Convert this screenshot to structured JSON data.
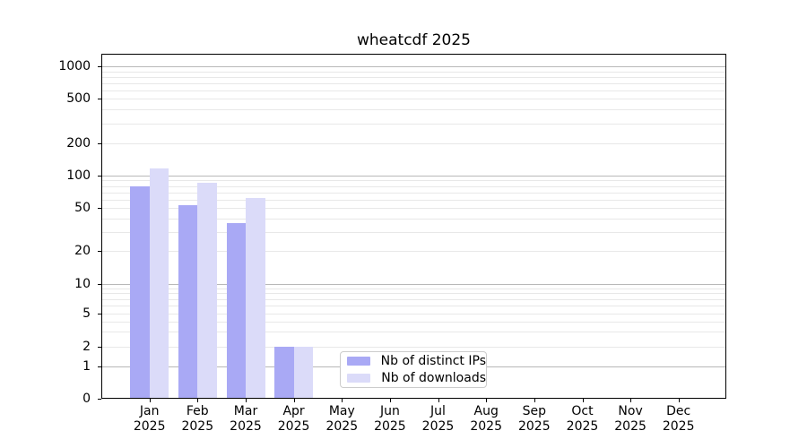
{
  "title": "wheatcdf 2025",
  "chart_data": {
    "type": "bar",
    "title": "wheatcdf 2025",
    "categories": [
      "Jan",
      "Feb",
      "Mar",
      "Apr",
      "May",
      "Jun",
      "Jul",
      "Aug",
      "Sep",
      "Oct",
      "Nov",
      "Dec"
    ],
    "category_year": "2025",
    "series": [
      {
        "name": "Nb of distinct IPs",
        "color": "#a9a9f5",
        "values": [
          80,
          53,
          36,
          2,
          0,
          0,
          0,
          0,
          0,
          0,
          0,
          0
        ]
      },
      {
        "name": "Nb of downloads",
        "color": "#dbdbf9",
        "values": [
          117,
          86,
          62,
          2,
          0,
          0,
          0,
          0,
          0,
          0,
          0,
          0
        ]
      }
    ],
    "ytick_labels": [
      "0",
      "1",
      "2",
      "5",
      "10",
      "20",
      "50",
      "100",
      "200",
      "500",
      "1000"
    ],
    "yticks": [
      0,
      1,
      2,
      5,
      10,
      20,
      50,
      100,
      200,
      500,
      1000
    ],
    "xlabel": "",
    "ylabel": "",
    "ylim": [
      0,
      1300
    ],
    "scale": "log-like with 1-2-5 ticks, linear below 1",
    "grid": "horizontal, major lines at powers of 10, faint minor log lines",
    "legend_position": "inside plot, lower center-left"
  },
  "colors": {
    "ips_bar": "#a9a9f5",
    "downloads_bar": "#dbdbf9",
    "grid_major": "#b8b8b8",
    "grid_minor": "#e8e8e8",
    "axis": "#000000",
    "legend_border": "#cccccc",
    "background": "#ffffff"
  }
}
